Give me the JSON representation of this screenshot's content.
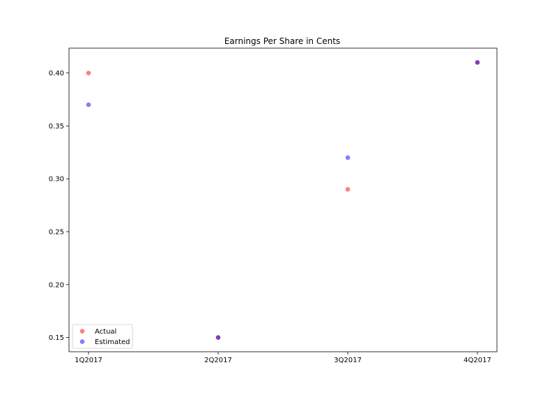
{
  "chart_data": {
    "type": "scatter",
    "title": "Earnings Per Share in Cents",
    "xlabel": "",
    "ylabel": "",
    "categories": [
      "1Q2017",
      "2Q2017",
      "3Q2017",
      "4Q2017"
    ],
    "series": [
      {
        "name": "Actual",
        "color": "#ff0000",
        "values": [
          0.4,
          0.15,
          0.29,
          0.41
        ]
      },
      {
        "name": "Estimated",
        "color": "#0000ff",
        "values": [
          0.37,
          0.15,
          0.32,
          0.41
        ]
      }
    ],
    "yticks": [
      "0.15",
      "0.20",
      "0.25",
      "0.30",
      "0.35",
      "0.40"
    ],
    "ylim": [
      0.1365,
      0.4235
    ],
    "grid": false,
    "legend_position": "lower-left"
  }
}
